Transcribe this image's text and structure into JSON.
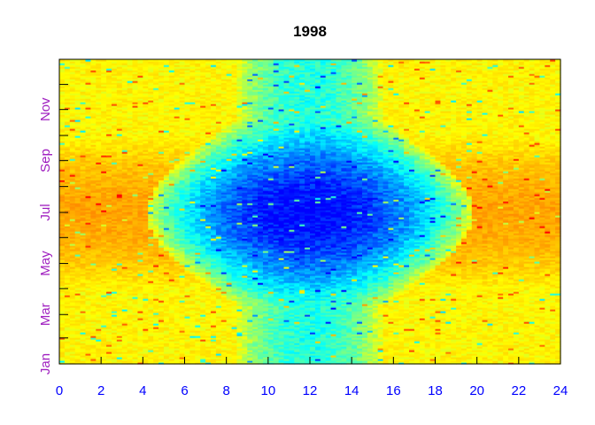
{
  "chart_data": {
    "type": "heatmap",
    "title": "1998",
    "xlabel": "",
    "ylabel": "",
    "x_ticks": [
      0,
      2,
      4,
      6,
      8,
      10,
      12,
      14,
      16,
      18,
      20,
      22,
      24
    ],
    "xlim": [
      0,
      24
    ],
    "y_tick_labels": [
      "Jan",
      "Mar",
      "May",
      "Jul",
      "Sep",
      "Nov"
    ],
    "y_tick_days": [
      1,
      60,
      121,
      182,
      244,
      305
    ],
    "ylim_days": [
      1,
      365
    ],
    "colorscale": [
      "#0000ff",
      "#00ffff",
      "#ffff00",
      "#ff8000",
      "#ff0000"
    ],
    "pattern": {
      "description": "values are lowest (blue) mid-day around hour 12 in summer months, highest (orange/red) at night in summer; yellow elsewhere",
      "day_low_center_hour": 12,
      "summer_peak_day": 182
    },
    "grid": false,
    "colors": {
      "x_tick_text": "#0000ff",
      "y_tick_text": "#a020c0"
    }
  }
}
